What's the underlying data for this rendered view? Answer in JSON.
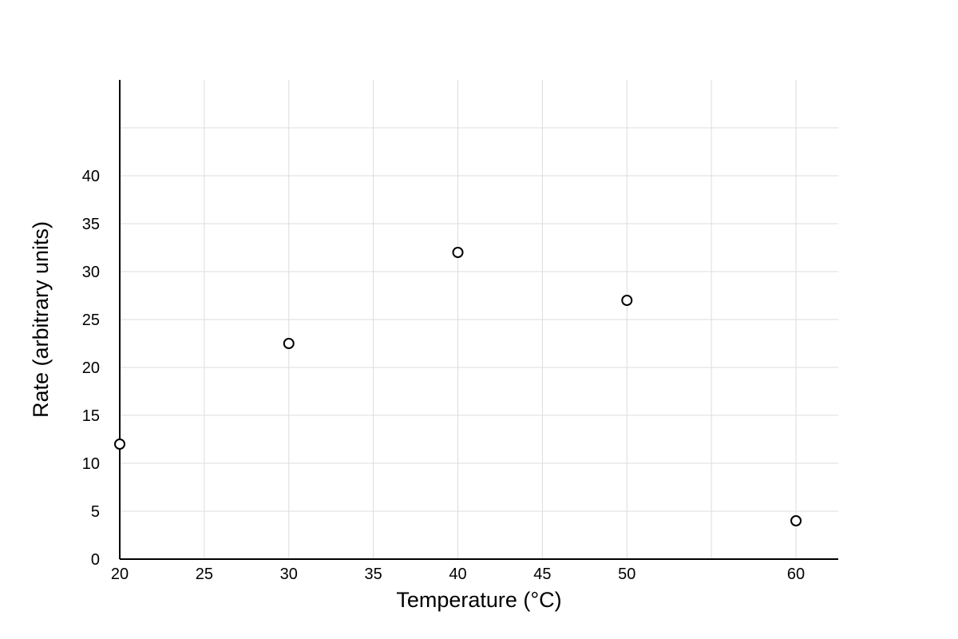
{
  "chart_data": {
    "type": "scatter",
    "title": "",
    "xlabel": "Temperature (°C)",
    "ylabel": "Rate (arbitrary units)",
    "xlim": [
      20,
      62.5
    ],
    "ylim": [
      0,
      50
    ],
    "x_ticks": [
      20,
      25,
      30,
      35,
      40,
      45,
      50,
      55,
      60
    ],
    "x_tick_labels": [
      "20",
      "25",
      "30",
      "35",
      "40",
      "45",
      "50",
      "",
      "60"
    ],
    "y_ticks": [
      0,
      5,
      10,
      15,
      20,
      25,
      30,
      35,
      40,
      45
    ],
    "y_tick_labels": [
      "0",
      "5",
      "10",
      "15",
      "20",
      "25",
      "30",
      "35",
      "40",
      ""
    ],
    "grid": true,
    "marker": "open-circle",
    "series": [
      {
        "x": [
          20,
          30,
          40,
          50,
          60
        ],
        "y": [
          12,
          22.5,
          32,
          27,
          4
        ]
      }
    ]
  }
}
